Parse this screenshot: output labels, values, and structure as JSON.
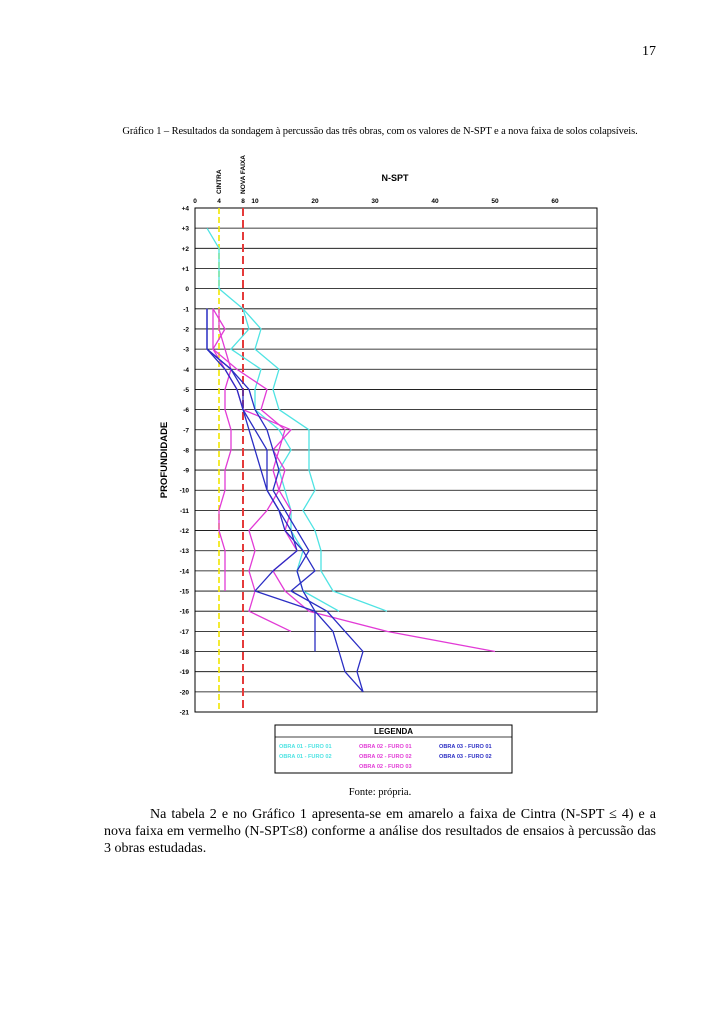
{
  "page": {
    "number": "17"
  },
  "caption": "Gráfico 1 – Resultados da sondagem à percussão das três obras, com os valores de N-SPT e a nova faixa de solos colapsíveis.",
  "source": "Fonte: própria.",
  "paragraph": "Na tabela 2 e no Gráfico 1 apresenta-se em amarelo a faixa de Cintra (N-SPT ≤ 4) e a nova faixa em vermelho (N-SPT≤8) conforme a análise dos resultados de ensaios à percussão das 3 obras estudadas.",
  "colors": {
    "obra01": "#4fe3e3",
    "obra02": "#e23bd6",
    "obra03": "#2b2ec4",
    "cintra_line": "#f2e600",
    "nova_faixa_line": "#e53b3b"
  },
  "chart_data": {
    "type": "line",
    "orientation": "depth-profile",
    "xlabel": "N-SPT",
    "ylabel": "PROFUNDIDADE",
    "x_ticks": [
      0,
      4,
      8,
      10,
      20,
      30,
      40,
      50,
      60
    ],
    "y_ticks": [
      "+4",
      "+3",
      "+2",
      "+1",
      "0",
      "-1",
      "-2",
      "-3",
      "-4",
      "-5",
      "-6",
      "-7",
      "-8",
      "-9",
      "-10",
      "-11",
      "-12",
      "-13",
      "-14",
      "-15",
      "-16",
      "-17",
      "-18",
      "-19",
      "-20",
      "-21"
    ],
    "xlim": [
      0,
      67
    ],
    "ylim": [
      4,
      -21
    ],
    "grid": true,
    "reference_lines": [
      {
        "name": "CINTRA",
        "x": 4,
        "color": "#f2e600",
        "style": "dashed"
      },
      {
        "name": "NOVA FAIXA",
        "x": 8,
        "color": "#e53b3b",
        "style": "dashed"
      }
    ],
    "legend": {
      "title": "LEGENDA",
      "position": "bottom",
      "entries": [
        {
          "label": "OBRA 01 - FURO 01",
          "color": "#4fe3e3"
        },
        {
          "label": "OBRA 02 - FURO 01",
          "color": "#e23bd6"
        },
        {
          "label": "OBRA 03 - FURO 01",
          "color": "#2b2ec4"
        },
        {
          "label": "OBRA 01 - FURO 02",
          "color": "#4fe3e3"
        },
        {
          "label": "OBRA 02 - FURO 02",
          "color": "#e23bd6"
        },
        {
          "label": "OBRA 03 - FURO 02",
          "color": "#2b2ec4"
        },
        {
          "label": "",
          "color": ""
        },
        {
          "label": "OBRA 02 - FURO 03",
          "color": "#e23bd6"
        },
        {
          "label": "",
          "color": ""
        }
      ]
    },
    "series": [
      {
        "name": "OBRA 01 - FURO 01",
        "color": "#4fe3e3",
        "points": [
          [
            2,
            3
          ],
          [
            4,
            2
          ],
          [
            4,
            1
          ],
          [
            4,
            0
          ],
          [
            6,
            -0.5
          ],
          [
            8,
            -1
          ],
          [
            11,
            -2
          ],
          [
            10,
            -3
          ],
          [
            14,
            -4
          ],
          [
            13,
            -5
          ],
          [
            14,
            -6
          ],
          [
            19,
            -7
          ],
          [
            19,
            -8
          ],
          [
            19,
            -9
          ],
          [
            20,
            -10
          ],
          [
            18,
            -11
          ],
          [
            20,
            -12
          ],
          [
            21,
            -13
          ],
          [
            21,
            -14
          ],
          [
            23,
            -15
          ],
          [
            32,
            -16
          ]
        ]
      },
      {
        "name": "OBRA 01 - FURO 02",
        "color": "#4fe3e3",
        "points": [
          [
            8,
            -1
          ],
          [
            9,
            -2
          ],
          [
            6,
            -3
          ],
          [
            11,
            -4
          ],
          [
            10,
            -5
          ],
          [
            10,
            -6
          ],
          [
            14,
            -7
          ],
          [
            16,
            -8
          ],
          [
            14,
            -9
          ],
          [
            15,
            -10
          ],
          [
            16,
            -11
          ],
          [
            16,
            -12
          ],
          [
            18,
            -13
          ],
          [
            17,
            -14
          ],
          [
            18,
            -15
          ],
          [
            24,
            -16
          ]
        ]
      },
      {
        "name": "OBRA 02 - FURO 01",
        "color": "#e23bd6",
        "points": [
          [
            3,
            -1
          ],
          [
            5,
            -2
          ],
          [
            3,
            -3
          ],
          [
            5,
            -4
          ],
          [
            7,
            -5
          ],
          [
            8,
            -6
          ],
          [
            16,
            -7
          ],
          [
            13,
            -8
          ],
          [
            15,
            -9
          ],
          [
            14,
            -10
          ],
          [
            16,
            -11
          ],
          [
            15,
            -12
          ],
          [
            17,
            -13
          ],
          [
            13,
            -14
          ],
          [
            15,
            -15
          ],
          [
            19,
            -16
          ],
          [
            32,
            -17
          ],
          [
            50,
            -18
          ]
        ]
      },
      {
        "name": "OBRA 02 - FURO 02",
        "color": "#e23bd6",
        "points": [
          [
            4,
            -1
          ],
          [
            4,
            -2
          ],
          [
            5,
            -3
          ],
          [
            6,
            -4
          ],
          [
            5,
            -5
          ],
          [
            5,
            -6
          ],
          [
            6,
            -7
          ],
          [
            6,
            -8
          ],
          [
            5,
            -9
          ],
          [
            5,
            -10
          ],
          [
            4,
            -11
          ],
          [
            4,
            -12
          ],
          [
            5,
            -13
          ],
          [
            5,
            -14
          ],
          [
            5,
            -15
          ]
        ]
      },
      {
        "name": "OBRA 02 - FURO 03",
        "color": "#e23bd6",
        "points": [
          [
            3,
            -1
          ],
          [
            3,
            -2
          ],
          [
            3,
            -3
          ],
          [
            7,
            -4
          ],
          [
            12,
            -5
          ],
          [
            11,
            -6
          ],
          [
            15,
            -7
          ],
          [
            14,
            -8
          ],
          [
            13,
            -9
          ],
          [
            14,
            -10
          ],
          [
            12,
            -11
          ],
          [
            9,
            -12
          ],
          [
            10,
            -13
          ],
          [
            9,
            -14
          ],
          [
            10,
            -15
          ],
          [
            9,
            -16
          ],
          [
            16,
            -17
          ]
        ]
      },
      {
        "name": "OBRA 03 - FURO 01",
        "color": "#2b2ec4",
        "points": [
          [
            2,
            -1
          ],
          [
            2,
            -2
          ],
          [
            2,
            -3
          ],
          [
            6,
            -4
          ],
          [
            9,
            -5
          ],
          [
            10,
            -6
          ],
          [
            12,
            -7
          ],
          [
            13,
            -8
          ],
          [
            14,
            -9
          ],
          [
            13,
            -10
          ],
          [
            15,
            -11
          ],
          [
            17,
            -12
          ],
          [
            19,
            -13
          ],
          [
            17,
            -14
          ],
          [
            18,
            -15
          ],
          [
            20,
            -16
          ],
          [
            20,
            -17
          ],
          [
            20,
            -18
          ]
        ]
      },
      {
        "name": "OBRA 03 - FURO 02",
        "color": "#2b2ec4",
        "points": [
          [
            2,
            -1
          ],
          [
            2,
            -2
          ],
          [
            2,
            -3
          ],
          [
            5,
            -4
          ],
          [
            7,
            -5
          ],
          [
            8,
            -6
          ],
          [
            10,
            -7
          ],
          [
            12,
            -8
          ],
          [
            12,
            -9
          ],
          [
            12,
            -10
          ],
          [
            14,
            -11
          ],
          [
            15,
            -12
          ],
          [
            18,
            -13
          ],
          [
            20,
            -14
          ],
          [
            16,
            -15
          ],
          [
            22,
            -16
          ],
          [
            25,
            -17
          ],
          [
            28,
            -18
          ],
          [
            27,
            -19
          ],
          [
            28,
            -20
          ]
        ]
      },
      {
        "name": "OBRA 03 - FURO 02",
        "color": "#2b2ec4",
        "points": [
          [
            2,
            -3
          ],
          [
            6,
            -4
          ],
          [
            8,
            -5
          ],
          [
            8,
            -6
          ],
          [
            9,
            -7
          ],
          [
            10,
            -8
          ],
          [
            11,
            -9
          ],
          [
            12,
            -10
          ],
          [
            14,
            -11
          ],
          [
            16,
            -12
          ],
          [
            17,
            -13
          ],
          [
            13,
            -14
          ],
          [
            10,
            -15
          ],
          [
            20,
            -16
          ],
          [
            23,
            -17
          ],
          [
            24,
            -18
          ],
          [
            25,
            -19
          ],
          [
            28,
            -20
          ]
        ]
      }
    ]
  }
}
